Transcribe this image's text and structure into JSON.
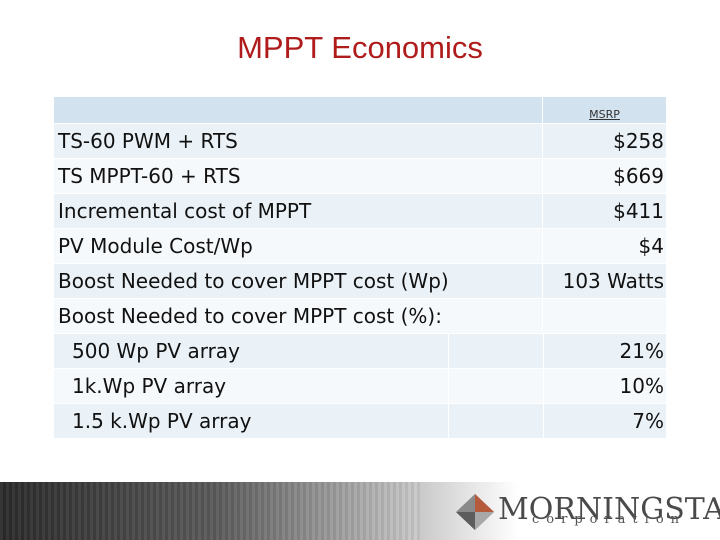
{
  "slide": {
    "title": "MPPT Economics"
  },
  "table": {
    "column_header": "MSRP",
    "rows": [
      {
        "label": "TS-60 PWM + RTS",
        "value": "$258"
      },
      {
        "label": "TS MPPT-60 + RTS",
        "value": "$669"
      },
      {
        "label": "Incremental cost of MPPT",
        "value": "$411"
      },
      {
        "label": "PV Module Cost/Wp",
        "value": "$4"
      },
      {
        "label": "Boost Needed to cover MPPT cost (Wp)",
        "value": "103 Watts"
      },
      {
        "label": "Boost Needed to cover MPPT cost (%):",
        "value": ""
      }
    ],
    "sub_rows": [
      {
        "label": "500 Wp PV array",
        "value": "21%"
      },
      {
        "label": "1k.Wp  PV array",
        "value": "10%"
      },
      {
        "label": "1.5 k.Wp PV array",
        "value": "7%"
      }
    ]
  },
  "logo": {
    "name": "MORNINGSTAR",
    "subtitle": "corporation"
  },
  "colors": {
    "title": "#b01c1c",
    "header_band": "#d2e2ee",
    "row_alt": "#eaf2f7",
    "row_base": "#f6f9fb"
  }
}
